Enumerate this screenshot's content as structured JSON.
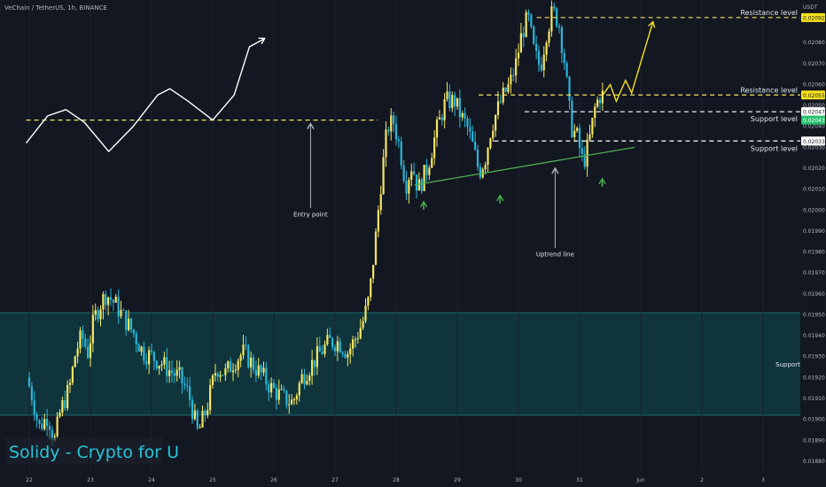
{
  "header": {
    "symbol_line": "VeChain / TetherUS, 1h, BINANCE"
  },
  "price_axis": {
    "unit": "USDT",
    "ticks": [
      "0.02080",
      "0.02070",
      "0.02060",
      "0.02050",
      "0.02040",
      "0.02030",
      "0.02020",
      "0.02010",
      "0.02000",
      "0.01990",
      "0.01980",
      "0.01970",
      "0.01960",
      "0.01950",
      "0.01940",
      "0.01930",
      "0.01920",
      "0.01910",
      "0.01900",
      "0.01890",
      "0.01880"
    ]
  },
  "time_axis": {
    "labels": [
      "22",
      "23",
      "24",
      "25",
      "26",
      "27",
      "28",
      "29",
      "30",
      "31",
      "Jun",
      "2",
      "3"
    ]
  },
  "price_tags": [
    {
      "text": "0.02092",
      "bg": "#f5e21c",
      "fg": "#131722"
    },
    {
      "text": "0.02055",
      "bg": "#f5e21c",
      "fg": "#131722"
    },
    {
      "text": "0.02047",
      "bg": "#ffffff",
      "fg": "#131722"
    },
    {
      "text": "0.02043",
      "bg": "#26c26b",
      "fg": "#ffffff"
    },
    {
      "text": "0.02033",
      "bg": "#ffffff",
      "fg": "#131722"
    }
  ],
  "annotations": {
    "resistance_top": "Resistance level",
    "resistance_mid": "Resistance level",
    "support_1": "Support level",
    "support_2": "Support level",
    "entry_point": "Entry point",
    "uptrend_line": "Uptrend line",
    "support_zone": "Support"
  },
  "watermark": "Solidy - Crypto for U",
  "colors": {
    "bull": "#f5e663",
    "bear": "#29b6d9",
    "background": "#131722",
    "support_zone": "#0f3a40",
    "trend": "#4caf50"
  },
  "chart_data": {
    "type": "candlestick",
    "interval": "1h",
    "x_unit": "May 2023 day",
    "ylim": [
      0.01877,
      0.02097
    ],
    "levels": {
      "resistance_top": 0.02092,
      "resistance_mid": 0.02055,
      "support_1": 0.02047,
      "support_2": 0.02033,
      "entry": 0.02043
    },
    "support_zone": [
      0.01902,
      0.01951
    ],
    "uptrend_line": {
      "from": [
        28.3,
        0.02012
      ],
      "to": [
        31.9,
        0.0203
      ]
    },
    "price_path": [
      [
        22.0,
        0.0192
      ],
      [
        22.1,
        0.0191
      ],
      [
        22.2,
        0.01896
      ],
      [
        22.35,
        0.01902
      ],
      [
        22.45,
        0.01889
      ],
      [
        22.55,
        0.01904
      ],
      [
        22.7,
        0.01915
      ],
      [
        22.8,
        0.01932
      ],
      [
        22.9,
        0.0194
      ],
      [
        23.0,
        0.01932
      ],
      [
        23.1,
        0.01948
      ],
      [
        23.2,
        0.01955
      ],
      [
        23.3,
        0.0196
      ],
      [
        23.45,
        0.01955
      ],
      [
        23.6,
        0.01948
      ],
      [
        23.75,
        0.01941
      ],
      [
        23.9,
        0.01932
      ],
      [
        24.05,
        0.0193
      ],
      [
        24.2,
        0.01927
      ],
      [
        24.35,
        0.01923
      ],
      [
        24.5,
        0.0192
      ],
      [
        24.65,
        0.01912
      ],
      [
        24.8,
        0.01893
      ],
      [
        24.95,
        0.01906
      ],
      [
        25.1,
        0.01925
      ],
      [
        25.25,
        0.01922
      ],
      [
        25.4,
        0.01928
      ],
      [
        25.55,
        0.01932
      ],
      [
        25.7,
        0.01926
      ],
      [
        25.85,
        0.01921
      ],
      [
        26.0,
        0.01915
      ],
      [
        26.2,
        0.0191
      ],
      [
        26.35,
        0.01908
      ],
      [
        26.5,
        0.0192
      ],
      [
        26.65,
        0.01926
      ],
      [
        26.8,
        0.01932
      ],
      [
        26.95,
        0.01937
      ],
      [
        27.1,
        0.01937
      ],
      [
        27.25,
        0.01932
      ],
      [
        27.4,
        0.0194
      ],
      [
        27.5,
        0.01947
      ],
      [
        27.6,
        0.01958
      ],
      [
        27.7,
        0.01985
      ],
      [
        27.8,
        0.02015
      ],
      [
        27.9,
        0.0204
      ],
      [
        28.0,
        0.02042
      ],
      [
        28.1,
        0.0203
      ],
      [
        28.2,
        0.02012
      ],
      [
        28.3,
        0.02022
      ],
      [
        28.4,
        0.0201
      ],
      [
        28.55,
        0.0202
      ],
      [
        28.7,
        0.02038
      ],
      [
        28.85,
        0.02052
      ],
      [
        29.0,
        0.02052
      ],
      [
        29.1,
        0.02045
      ],
      [
        29.2,
        0.0204
      ],
      [
        29.3,
        0.0203
      ],
      [
        29.4,
        0.02018
      ],
      [
        29.5,
        0.02025
      ],
      [
        29.6,
        0.0204
      ],
      [
        29.7,
        0.02048
      ],
      [
        29.8,
        0.02055
      ],
      [
        29.9,
        0.0206
      ],
      [
        30.0,
        0.0207
      ],
      [
        30.1,
        0.02085
      ],
      [
        30.2,
        0.02092
      ],
      [
        30.3,
        0.02075
      ],
      [
        30.4,
        0.02068
      ],
      [
        30.5,
        0.02085
      ],
      [
        30.6,
        0.02095
      ],
      [
        30.7,
        0.0209
      ],
      [
        30.8,
        0.0207
      ],
      [
        30.9,
        0.0204
      ],
      [
        31.0,
        0.02035
      ],
      [
        31.1,
        0.02022
      ],
      [
        31.2,
        0.02033
      ],
      [
        31.3,
        0.0205
      ],
      [
        31.38,
        0.02055
      ]
    ],
    "projections": {
      "white": [
        [
          21.95,
          0.02032
        ],
        [
          22.3,
          0.02045
        ],
        [
          22.6,
          0.02048
        ],
        [
          22.9,
          0.02042
        ],
        [
          23.3,
          0.02028
        ],
        [
          23.7,
          0.0204
        ],
        [
          24.1,
          0.02055
        ],
        [
          24.3,
          0.02058
        ],
        [
          24.6,
          0.02052
        ],
        [
          25.0,
          0.02043
        ],
        [
          25.35,
          0.02055
        ],
        [
          25.6,
          0.02078
        ],
        [
          25.85,
          0.02082
        ]
      ],
      "yellow": [
        [
          31.38,
          0.02055
        ],
        [
          31.5,
          0.0206
        ],
        [
          31.6,
          0.02052
        ],
        [
          31.75,
          0.02062
        ],
        [
          31.85,
          0.02056
        ],
        [
          32.2,
          0.0209
        ]
      ]
    }
  }
}
